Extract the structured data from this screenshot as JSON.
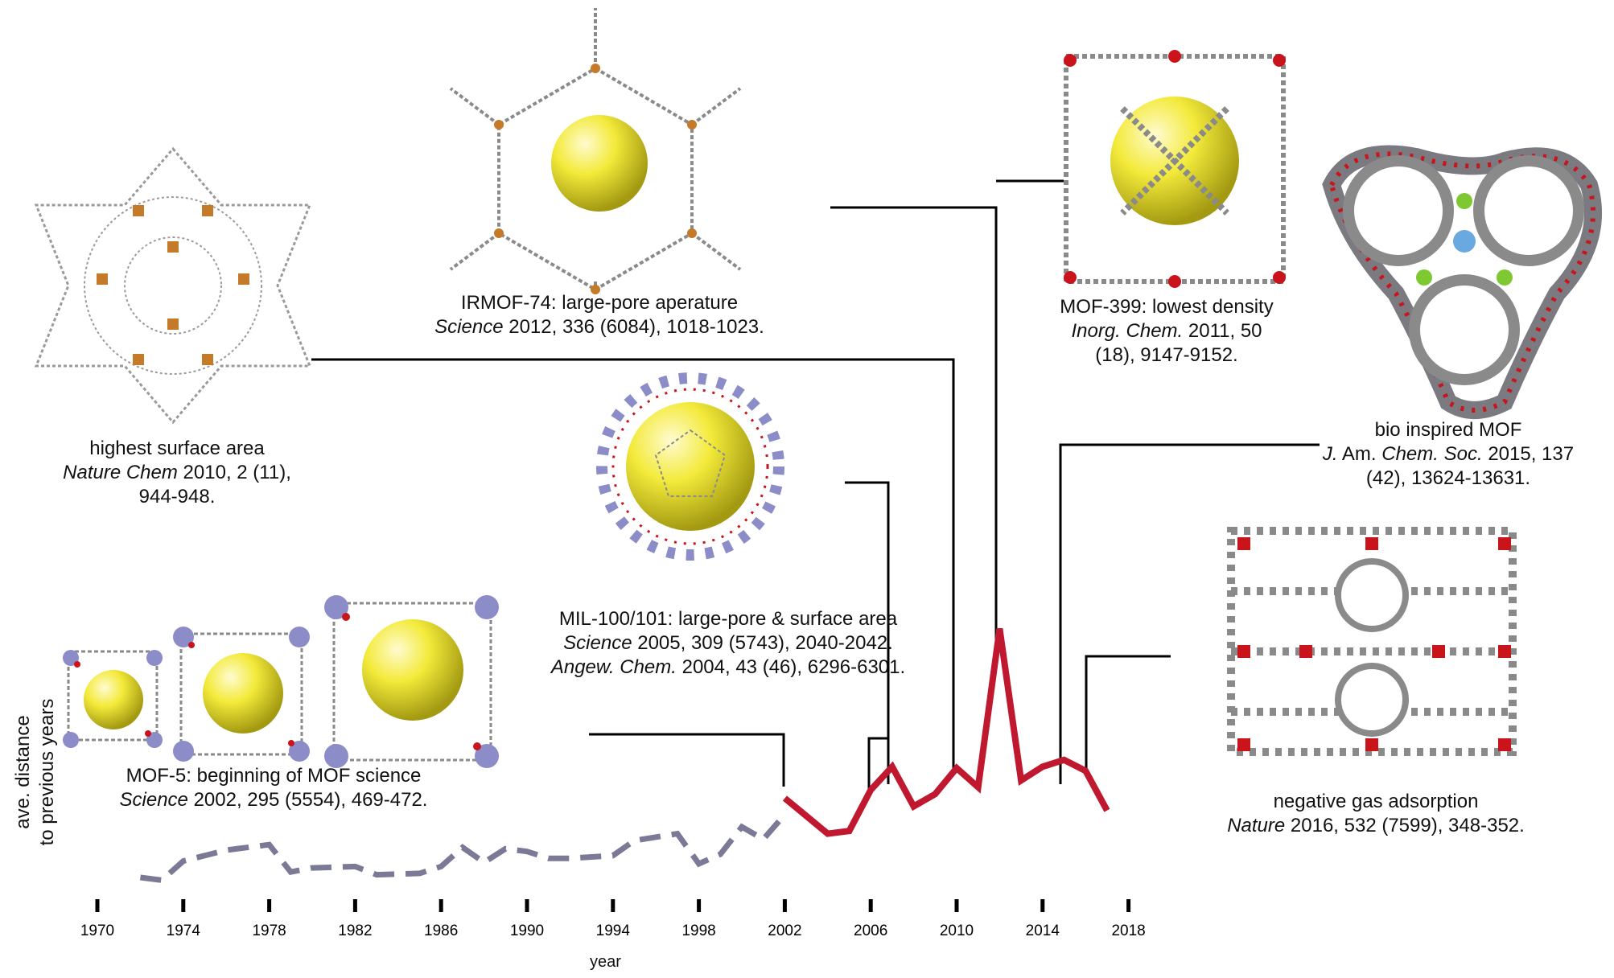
{
  "chart_data": {
    "type": "line",
    "xlabel": "year",
    "ylabel_lines": [
      "ave. distance",
      "to previous years"
    ],
    "xlim": [
      1970,
      2018
    ],
    "xticks": [
      1970,
      1974,
      1978,
      1982,
      1986,
      1990,
      1994,
      1998,
      2002,
      2006,
      2010,
      2014,
      2018
    ],
    "series": [
      {
        "style": "dashed",
        "color": "#7a7a96",
        "x": [
          1972,
          1973,
          1974,
          1976,
          1978,
          1979,
          1980,
          1982,
          1983,
          1985,
          1986,
          1987,
          1988,
          1989,
          1990,
          1991,
          1992,
          1994,
          1995,
          1997,
          1998,
          1999,
          2000,
          2001,
          2002
        ],
        "y": [
          0.1,
          0.08,
          0.22,
          0.3,
          0.34,
          0.14,
          0.17,
          0.18,
          0.12,
          0.13,
          0.18,
          0.32,
          0.21,
          0.31,
          0.29,
          0.24,
          0.24,
          0.26,
          0.37,
          0.42,
          0.2,
          0.27,
          0.47,
          0.38,
          0.56
        ]
      },
      {
        "style": "solid",
        "color": "#c0182e",
        "x": [
          2002,
          2003,
          2004,
          2005,
          2006,
          2007,
          2008,
          2009,
          2010,
          2011,
          2012,
          2013,
          2014,
          2015,
          2016,
          2017
        ],
        "y": [
          0.68,
          0.55,
          0.42,
          0.44,
          0.74,
          0.91,
          0.62,
          0.71,
          0.9,
          0.76,
          1.92,
          0.81,
          0.91,
          0.96,
          0.88,
          0.59
        ]
      }
    ]
  },
  "annotations": {
    "mof5": {
      "title": "MOF-5: beginning of MOF science",
      "journal": "Science",
      "ref": "2002, 295 (5554), 469-472."
    },
    "mil": {
      "title": "MIL-100/101: large-pore & surface area",
      "journal1": "Science",
      "ref1": "2005, 309 (5743), 2040-2042.",
      "journal2": "Angew. Chem.",
      "ref2": "2004, 43 (46), 6296-6301."
    },
    "highest": {
      "title": "highest surface area",
      "journal": "Nature Chem",
      "ref": "2010, 2 (11),",
      "ref2": "944-948."
    },
    "irmof": {
      "title": "IRMOF-74: large-pore aperature",
      "journal": "Science",
      "ref": "2012, 336 (6084), 1018-1023."
    },
    "mof399": {
      "title": "MOF-399: lowest density",
      "journal": "Inorg. Chem.",
      "ref": "2011, 50",
      "ref2": "(18), 9147-9152."
    },
    "bio": {
      "title": "bio inspired MOF",
      "j1": "J.",
      "j2": "Am.",
      "j3": "Chem. Soc.",
      "ref": "2015, 137",
      "ref2": "(42), 13624-13631."
    },
    "neg": {
      "title": "negative gas adsorption",
      "journal": "Nature",
      "ref": "2016, 532 (7599), 348-352."
    }
  },
  "colors": {
    "pore": "#f5ee3a",
    "framework": "#8a8a8a",
    "metal_red": "#c9141c",
    "metal_blue": "#8c8cc8",
    "metal_orange": "#c57a2a",
    "metal_green": "#7ec832"
  }
}
